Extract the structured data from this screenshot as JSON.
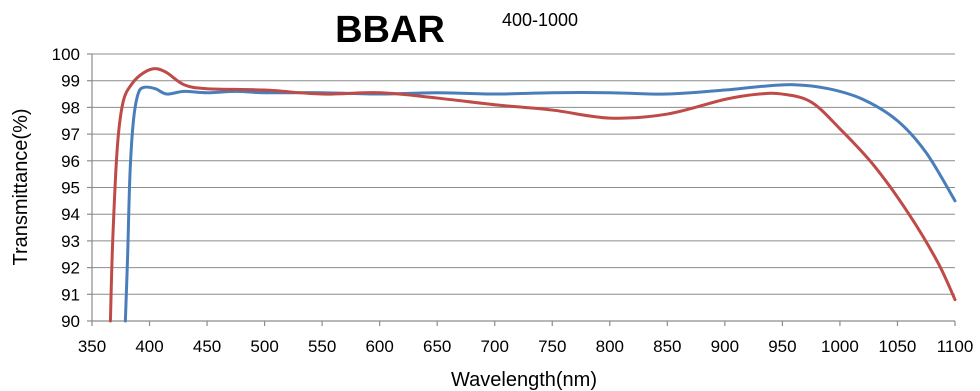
{
  "chart_data": {
    "type": "line",
    "title": "BBAR",
    "subtitle": "400-1000",
    "xlabel": "Wavelength(nm)",
    "ylabel": "Transmittance(%)",
    "xlim": [
      350,
      1100
    ],
    "ylim": [
      90,
      100
    ],
    "x_ticks": [
      350,
      400,
      450,
      500,
      550,
      600,
      650,
      700,
      750,
      800,
      850,
      900,
      950,
      1000,
      1050,
      1100
    ],
    "y_ticks": [
      90,
      91,
      92,
      93,
      94,
      95,
      96,
      97,
      98,
      99,
      100
    ],
    "grid": "horizontal",
    "legend": "none",
    "series": [
      {
        "color": "#4a7ebb",
        "points": [
          [
            379,
            90.0
          ],
          [
            381,
            92.5
          ],
          [
            383,
            95.5
          ],
          [
            386,
            97.5
          ],
          [
            390,
            98.5
          ],
          [
            395,
            98.75
          ],
          [
            405,
            98.7
          ],
          [
            415,
            98.5
          ],
          [
            430,
            98.6
          ],
          [
            450,
            98.55
          ],
          [
            475,
            98.6
          ],
          [
            500,
            98.55
          ],
          [
            550,
            98.55
          ],
          [
            600,
            98.5
          ],
          [
            650,
            98.55
          ],
          [
            700,
            98.5
          ],
          [
            750,
            98.55
          ],
          [
            800,
            98.55
          ],
          [
            850,
            98.5
          ],
          [
            900,
            98.65
          ],
          [
            930,
            98.78
          ],
          [
            960,
            98.85
          ],
          [
            990,
            98.7
          ],
          [
            1020,
            98.3
          ],
          [
            1050,
            97.5
          ],
          [
            1075,
            96.3
          ],
          [
            1100,
            94.5
          ]
        ]
      },
      {
        "color": "#be4b48",
        "points": [
          [
            366,
            90.0
          ],
          [
            368,
            93.0
          ],
          [
            372,
            96.5
          ],
          [
            377,
            98.2
          ],
          [
            385,
            98.9
          ],
          [
            395,
            99.3
          ],
          [
            405,
            99.45
          ],
          [
            415,
            99.3
          ],
          [
            430,
            98.85
          ],
          [
            450,
            98.7
          ],
          [
            500,
            98.65
          ],
          [
            550,
            98.5
          ],
          [
            600,
            98.55
          ],
          [
            650,
            98.35
          ],
          [
            700,
            98.1
          ],
          [
            750,
            97.9
          ],
          [
            800,
            97.6
          ],
          [
            850,
            97.75
          ],
          [
            900,
            98.3
          ],
          [
            930,
            98.5
          ],
          [
            950,
            98.5
          ],
          [
            975,
            98.2
          ],
          [
            1000,
            97.2
          ],
          [
            1030,
            95.8
          ],
          [
            1060,
            94.0
          ],
          [
            1085,
            92.2
          ],
          [
            1100,
            90.8
          ]
        ]
      }
    ]
  }
}
